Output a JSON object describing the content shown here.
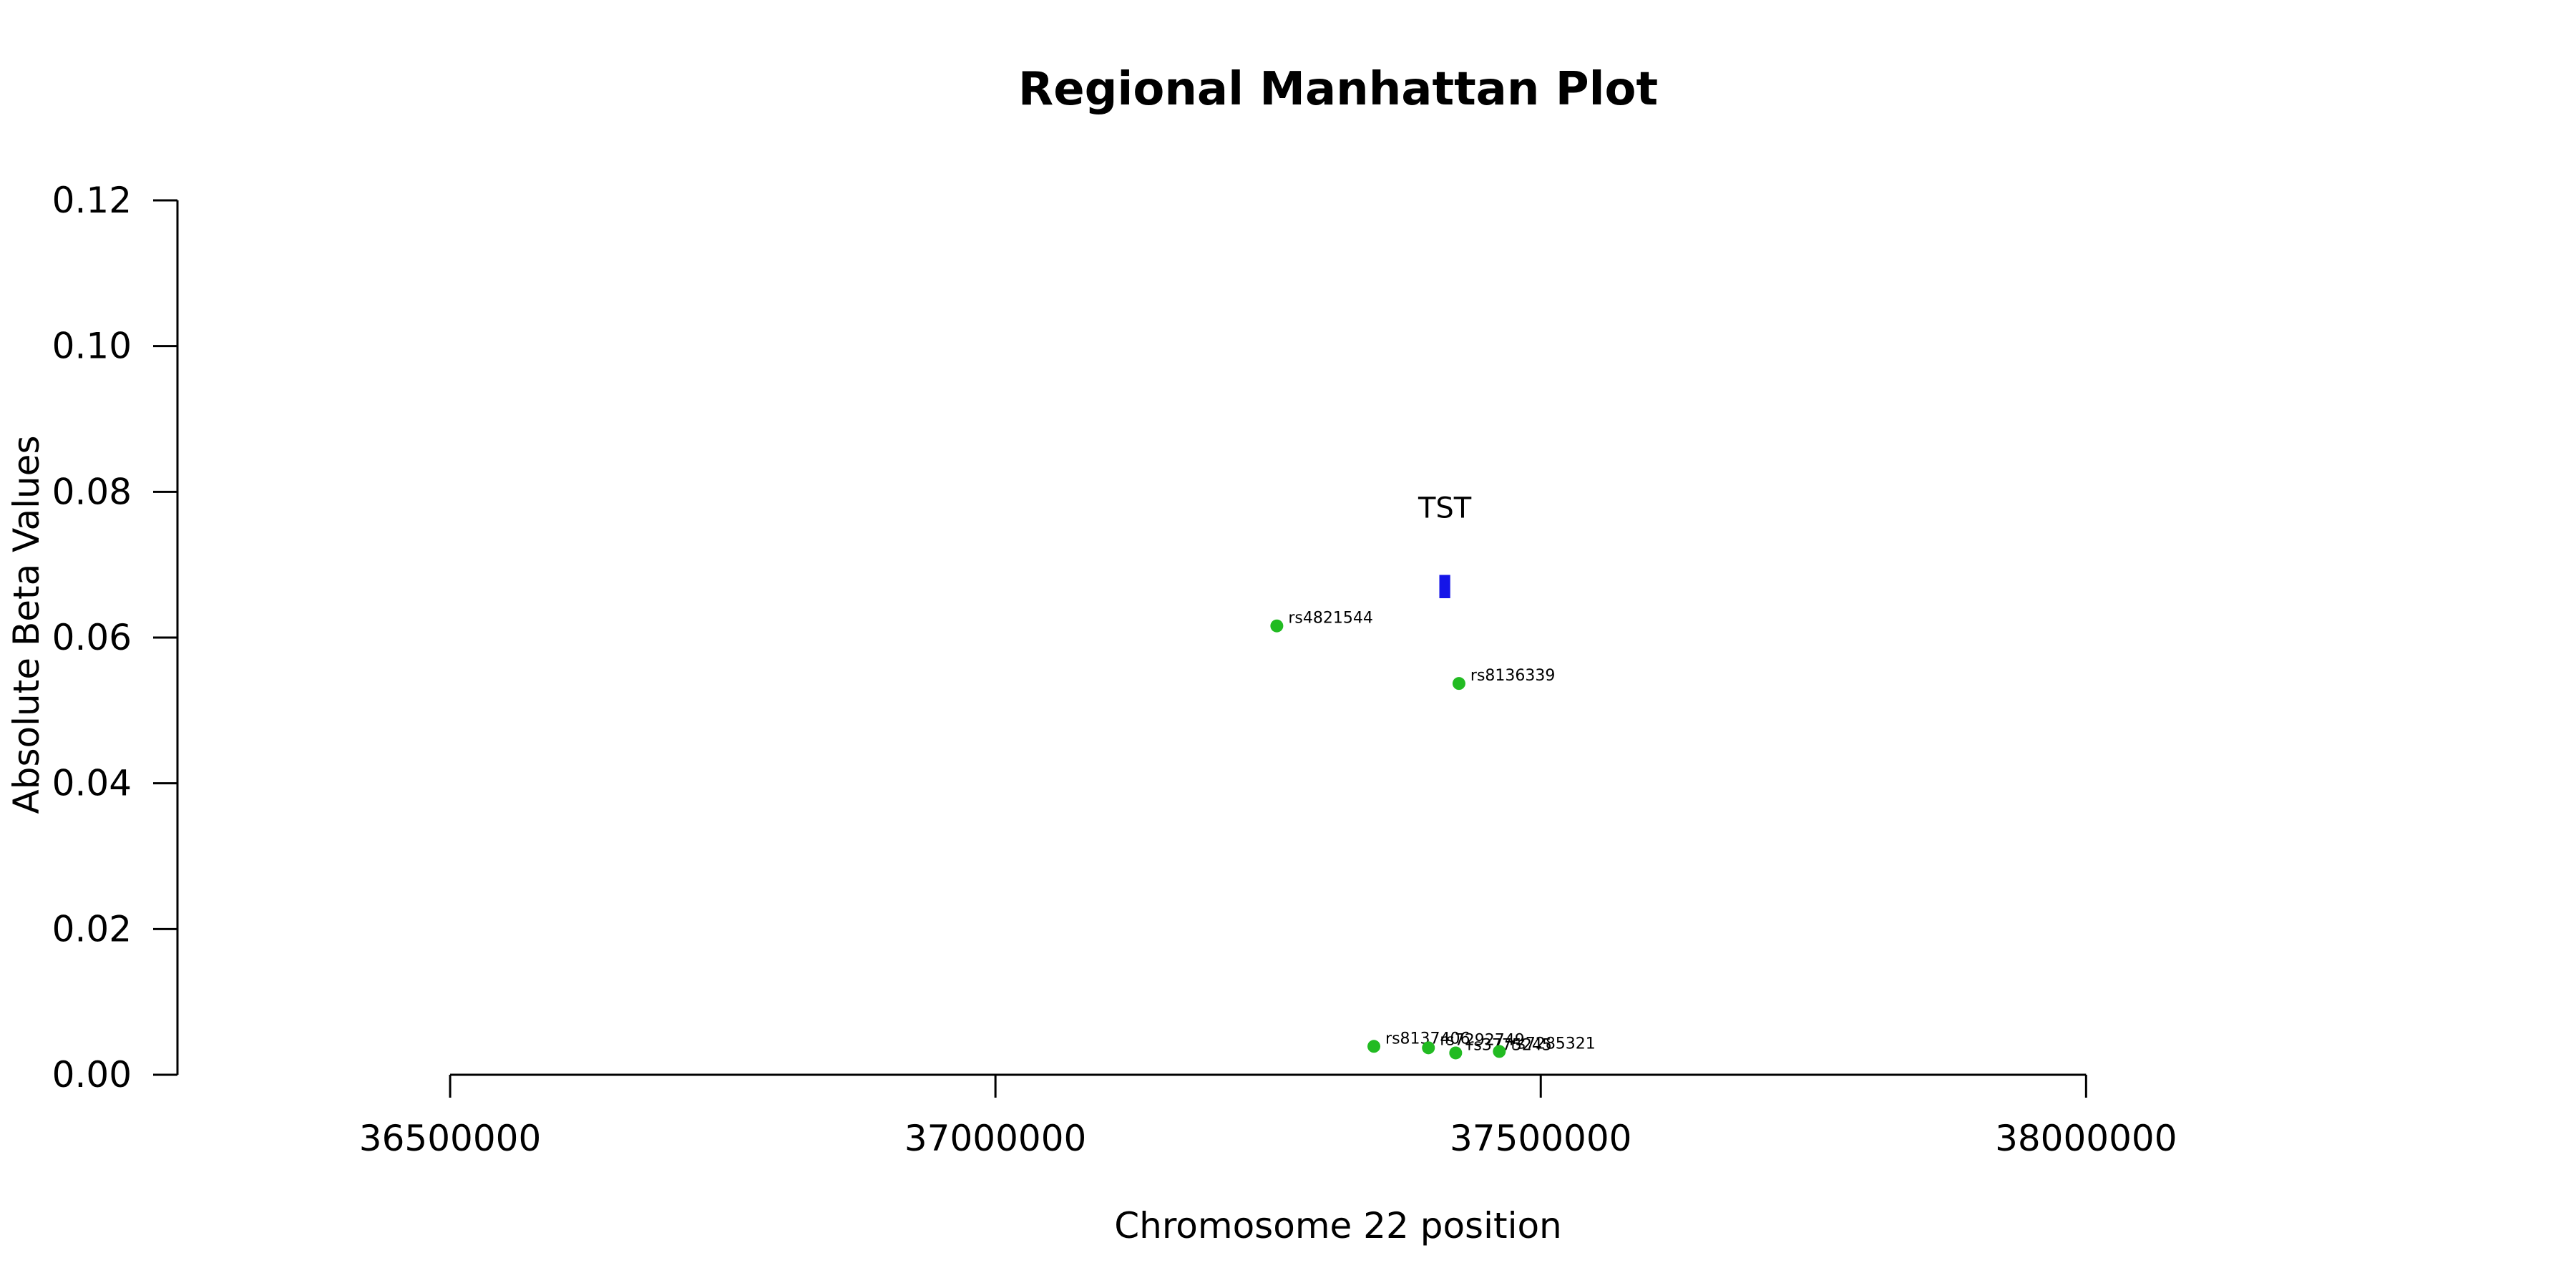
{
  "chart_data": {
    "type": "scatter",
    "title": "Regional Manhattan Plot",
    "xlabel": "Chromosome 22 position",
    "ylabel": "Absolute Beta Values",
    "xlim": [
      36250000,
      38400000
    ],
    "ylim": [
      0,
      0.12
    ],
    "x_ticks": [
      36500000,
      37000000,
      37500000,
      38000000
    ],
    "x_tick_labels": [
      "36500000",
      "37000000",
      "37500000",
      "38000000"
    ],
    "y_ticks": [
      0,
      0.02,
      0.04,
      0.06,
      0.08,
      0.1,
      0.12
    ],
    "y_tick_labels": [
      "0.00",
      "0.02",
      "0.04",
      "0.06",
      "0.08",
      "0.10",
      "0.12"
    ],
    "grid": false,
    "point_color": "#22bb22",
    "points": [
      {
        "label": "rs4821544",
        "x": 37258000,
        "y": 0.0616
      },
      {
        "label": "rs8136339",
        "x": 37425000,
        "y": 0.0537
      },
      {
        "label": "rs8137406",
        "x": 37347000,
        "y": 0.0039
      },
      {
        "label": "rs7292749",
        "x": 37397000,
        "y": 0.0037
      },
      {
        "label": "rs3775245",
        "x": 37422000,
        "y": 0.003
      },
      {
        "label": "rs7285321",
        "x": 37462000,
        "y": 0.0032
      }
    ],
    "gene": {
      "name": "TST",
      "start": 37407000,
      "end": 37417000,
      "y_low": 0.0654,
      "y_high": 0.0686,
      "color": "#1515e8"
    }
  }
}
